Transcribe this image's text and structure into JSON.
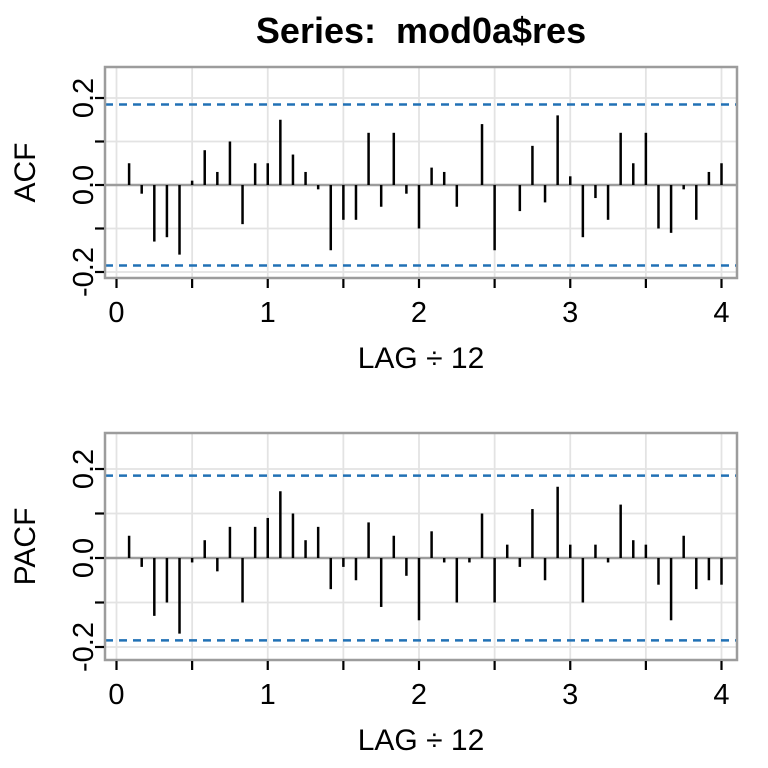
{
  "chart_data": {
    "title": "Series:  mod0a$res",
    "type": "bar",
    "description": "ACF and PACF correlogram pair with dashed confidence bands",
    "lag_divisor": 12,
    "n_lags": 48,
    "colors": {
      "bar": "#000000",
      "ci_line": "#2171b5",
      "grid": "#e3e3e3",
      "box": "#9c9c9c",
      "zero_line": "#9c9c9c",
      "text": "#000000",
      "background": "#ffffff"
    },
    "charts": [
      {
        "name": "acf",
        "type": "bar",
        "ylabel": "ACF",
        "xlabel": "LAG ÷ 12",
        "ci_upper": 0.185,
        "ci_lower": -0.185,
        "ci_style": "dashed",
        "grid": true,
        "xlim": [
          -0.08,
          4.1
        ],
        "ylim": [
          -0.215,
          0.27
        ],
        "x_ticks_step": 0.5,
        "x_labeled_ticks": [
          {
            "v": 0,
            "label": "0"
          },
          {
            "v": 1,
            "label": "1"
          },
          {
            "v": 2,
            "label": "2"
          },
          {
            "v": 3,
            "label": "3"
          },
          {
            "v": 4,
            "label": "4"
          }
        ],
        "y_ticks": [
          0.2,
          0.1,
          0,
          -0.1,
          -0.2
        ],
        "y_labeled_ticks": [
          {
            "v": 0.2,
            "label": "0.2"
          },
          {
            "v": 0,
            "label": "0.0"
          },
          {
            "v": -0.2,
            "label": "-0.2"
          }
        ],
        "values": [
          0.05,
          -0.02,
          -0.13,
          -0.12,
          -0.16,
          0.01,
          0.08,
          0.03,
          0.1,
          -0.09,
          0.05,
          0.05,
          0.15,
          0.07,
          0.03,
          -0.01,
          -0.15,
          -0.08,
          -0.08,
          0.12,
          -0.05,
          0.12,
          -0.02,
          -0.1,
          0.04,
          0.03,
          -0.05,
          0.0,
          0.14,
          -0.15,
          0.0,
          -0.06,
          0.09,
          -0.04,
          0.16,
          0.02,
          -0.12,
          -0.03,
          -0.08,
          0.12,
          0.05,
          0.12,
          -0.1,
          -0.11,
          -0.01,
          -0.08,
          0.03,
          0.05
        ]
      },
      {
        "name": "pacf",
        "type": "bar",
        "ylabel": "PACF",
        "xlabel": "LAG ÷ 12",
        "ci_upper": 0.185,
        "ci_lower": -0.185,
        "ci_style": "dashed",
        "grid": true,
        "xlim": [
          -0.08,
          4.1
        ],
        "ylim": [
          -0.23,
          0.28
        ],
        "x_ticks_step": 0.5,
        "x_labeled_ticks": [
          {
            "v": 0,
            "label": "0"
          },
          {
            "v": 1,
            "label": "1"
          },
          {
            "v": 2,
            "label": "2"
          },
          {
            "v": 3,
            "label": "3"
          },
          {
            "v": 4,
            "label": "4"
          }
        ],
        "y_ticks": [
          0.2,
          0.1,
          0,
          -0.1,
          -0.2
        ],
        "y_labeled_ticks": [
          {
            "v": 0.2,
            "label": "0.2"
          },
          {
            "v": 0,
            "label": "0.0"
          },
          {
            "v": -0.2,
            "label": "-0.2"
          }
        ],
        "values": [
          0.05,
          -0.02,
          -0.13,
          -0.1,
          -0.17,
          -0.01,
          0.04,
          -0.03,
          0.07,
          -0.1,
          0.07,
          0.09,
          0.15,
          0.1,
          0.04,
          0.07,
          -0.07,
          -0.02,
          -0.05,
          0.08,
          -0.11,
          0.05,
          -0.04,
          -0.14,
          0.06,
          -0.01,
          -0.1,
          -0.01,
          0.1,
          -0.1,
          0.03,
          -0.02,
          0.11,
          -0.05,
          0.16,
          0.03,
          -0.1,
          0.03,
          -0.01,
          0.12,
          0.04,
          0.03,
          -0.06,
          -0.14,
          0.05,
          -0.07,
          -0.05,
          -0.06
        ]
      }
    ]
  }
}
